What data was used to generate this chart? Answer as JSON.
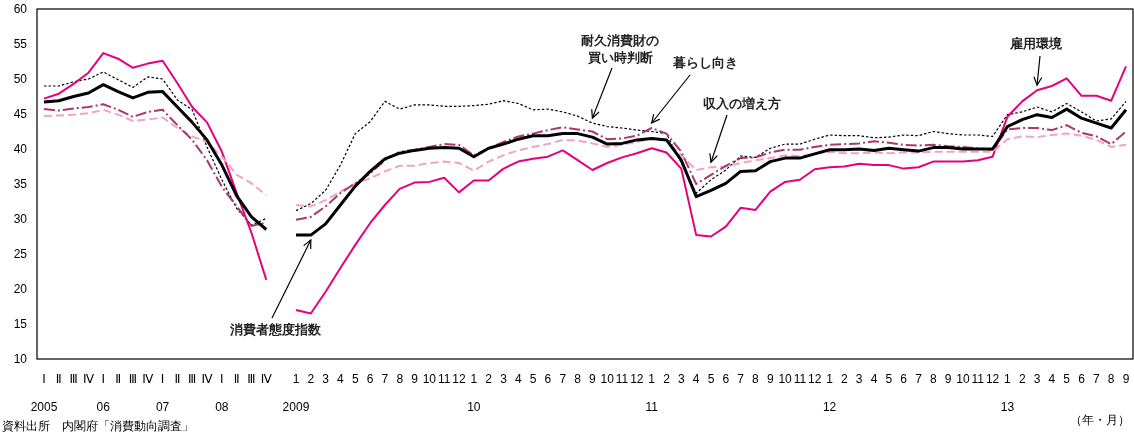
{
  "chart_data": {
    "type": "line",
    "categories": [
      "Ⅰ\n2005",
      "Ⅱ",
      "Ⅲ",
      "Ⅳ",
      "Ⅰ\n06",
      "Ⅱ",
      "Ⅲ",
      "Ⅳ",
      "Ⅰ\n07",
      "Ⅱ",
      "Ⅲ",
      "Ⅳ",
      "Ⅰ\n08",
      "Ⅱ",
      "Ⅲ",
      "Ⅳ",
      null,
      "1\n2009",
      "2",
      "3",
      "4",
      "5",
      "6",
      "7",
      "8",
      "9",
      "10",
      "11",
      "12",
      "1\n10",
      "2",
      "3",
      "4",
      "5",
      "6",
      "7",
      "8",
      "9",
      "10",
      "11",
      "12",
      "1\n11",
      "2",
      "3",
      "4",
      "5",
      "6",
      "7",
      "8",
      "9",
      "10",
      "11",
      "12",
      "1\n12",
      "2",
      "3",
      "4",
      "5",
      "6",
      "7",
      "8",
      "9",
      "10",
      "11",
      "12",
      "1\n13",
      "2",
      "3",
      "4",
      "5",
      "6",
      "7",
      "8",
      "9"
    ],
    "ylim": [
      10,
      60
    ],
    "yticks": [
      10,
      15,
      20,
      25,
      30,
      35,
      40,
      45,
      50,
      55,
      60
    ],
    "grid": false,
    "legend": false,
    "marker": "none",
    "series": [
      {
        "name": "消費者態度指数",
        "color": "#000000",
        "line_style": "solid",
        "values": [
          46.7,
          46.9,
          47.5,
          48.0,
          49.2,
          48.2,
          47.3,
          48.1,
          48.2,
          46.0,
          43.8,
          41.3,
          37.7,
          33.3,
          30.3,
          28.5,
          null,
          27.7,
          27.7,
          29.3,
          32.0,
          34.7,
          36.8,
          38.6,
          39.4,
          39.8,
          40.1,
          40.2,
          40.1,
          38.9,
          40.1,
          40.7,
          41.4,
          41.9,
          41.9,
          42.2,
          42.2,
          41.7,
          40.7,
          40.8,
          41.3,
          41.5,
          41.3,
          38.4,
          33.2,
          34.1,
          35.1,
          36.8,
          36.9,
          38.2,
          38.7,
          38.7,
          39.3,
          39.9,
          39.9,
          40.0,
          39.8,
          40.1,
          39.9,
          39.7,
          40.2,
          40.2,
          40.0,
          40.0,
          40.0,
          43.2,
          44.2,
          44.9,
          44.5,
          45.7,
          44.4,
          43.7,
          43.0,
          45.6
        ]
      },
      {
        "name": "暮らし向き",
        "color": "#a8396b",
        "line_style": "dashdot",
        "values": [
          45.7,
          45.5,
          45.8,
          46.0,
          46.4,
          45.6,
          44.6,
          45.3,
          45.6,
          43.4,
          41.3,
          38.4,
          34.6,
          31.8,
          29.0,
          29.5,
          null,
          29.9,
          30.3,
          31.8,
          33.7,
          35.1,
          36.5,
          38.4,
          39.6,
          39.9,
          40.3,
          40.7,
          40.6,
          39.1,
          40.1,
          41.0,
          41.8,
          42.2,
          42.7,
          43.1,
          42.8,
          42.5,
          41.4,
          41.5,
          41.9,
          43.0,
          42.2,
          39.6,
          35.0,
          36.3,
          37.6,
          38.7,
          38.8,
          39.5,
          39.9,
          39.9,
          40.3,
          40.6,
          40.7,
          40.8,
          41.1,
          40.9,
          40.6,
          40.5,
          40.6,
          40.4,
          40.3,
          40.1,
          39.9,
          42.8,
          43.0,
          43.0,
          42.7,
          43.4,
          42.3,
          41.8,
          40.7,
          42.5
        ]
      },
      {
        "name": "収入の増え方",
        "color": "#f2a3c3",
        "line_style": "dashed",
        "values": [
          44.7,
          44.8,
          44.9,
          45.1,
          45.6,
          44.9,
          44.0,
          44.2,
          44.5,
          43.0,
          41.8,
          41.0,
          38.9,
          36.3,
          35.1,
          33.4,
          null,
          32.0,
          31.8,
          32.7,
          33.9,
          35.1,
          35.8,
          36.8,
          37.6,
          37.6,
          38.0,
          38.2,
          38.0,
          36.9,
          38.2,
          39.1,
          39.8,
          40.3,
          40.7,
          41.3,
          41.2,
          40.8,
          40.3,
          40.6,
          41.0,
          41.5,
          41.3,
          39.1,
          37.0,
          37.4,
          37.5,
          38.0,
          38.4,
          38.7,
          39.1,
          39.0,
          39.3,
          39.6,
          39.4,
          39.4,
          39.5,
          39.4,
          39.5,
          39.5,
          39.6,
          39.6,
          39.6,
          39.6,
          39.6,
          41.4,
          41.8,
          41.7,
          42.0,
          42.2,
          41.9,
          41.3,
          40.3,
          40.6
        ]
      },
      {
        "name": "雇用環境",
        "color": "#e6007e",
        "line_style": "solid",
        "values": [
          47.2,
          47.9,
          49.3,
          50.9,
          53.7,
          52.9,
          51.6,
          52.2,
          52.6,
          49.4,
          46.0,
          43.8,
          39.6,
          33.7,
          28.0,
          21.3,
          null,
          17.0,
          16.5,
          19.6,
          23.0,
          26.3,
          29.4,
          32.0,
          34.3,
          35.2,
          35.3,
          35.9,
          33.8,
          35.5,
          35.5,
          37.2,
          38.2,
          38.6,
          38.9,
          39.8,
          38.4,
          37.0,
          38.0,
          38.8,
          39.4,
          40.1,
          39.5,
          37.2,
          27.7,
          27.5,
          28.9,
          31.6,
          31.3,
          33.9,
          35.3,
          35.6,
          37.1,
          37.4,
          37.5,
          37.9,
          37.7,
          37.7,
          37.2,
          37.4,
          38.2,
          38.2,
          38.2,
          38.4,
          38.9,
          44.6,
          46.8,
          48.4,
          49.0,
          50.1,
          47.6,
          47.6,
          46.9,
          51.8
        ]
      },
      {
        "name": "耐久消費財の買い時判断",
        "color": "#000000",
        "line_style": "dotted",
        "values": [
          49.0,
          49.0,
          49.6,
          50.0,
          51.0,
          49.9,
          48.8,
          50.3,
          50.0,
          47.0,
          45.6,
          40.3,
          35.6,
          31.5,
          29.1,
          30.1,
          null,
          31.2,
          32.2,
          34.1,
          37.7,
          42.2,
          43.9,
          46.8,
          45.7,
          46.3,
          46.3,
          46.1,
          46.1,
          46.2,
          46.4,
          46.9,
          46.5,
          45.6,
          45.7,
          45.3,
          44.7,
          43.7,
          43.2,
          43.0,
          42.7,
          42.5,
          42.2,
          38.0,
          33.7,
          35.6,
          37.0,
          39.0,
          38.8,
          40.1,
          40.7,
          40.7,
          41.4,
          42.0,
          41.9,
          41.9,
          41.6,
          41.7,
          42.0,
          41.9,
          42.5,
          42.2,
          42.0,
          42.0,
          41.8,
          44.9,
          45.3,
          46.0,
          45.3,
          46.5,
          45.3,
          44.0,
          44.3,
          46.8
        ]
      }
    ],
    "annotations": [
      "資料出所　内閣府「消費動向調査」",
      "（年・月）"
    ]
  }
}
